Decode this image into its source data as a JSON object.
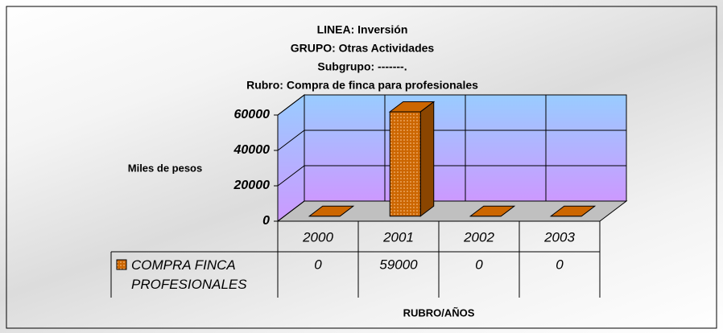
{
  "chart_data": {
    "type": "bar3d",
    "title_lines": [
      "LINEA: Inversión",
      "GRUPO: Otras Actividades",
      "Subgrupo: -------.",
      "Rubro: Compra de finca para profesionales"
    ],
    "y_label": "Miles de pesos",
    "x_label": "RUBRO/AÑOS",
    "categories": [
      "2000",
      "2001",
      "2002",
      "2003"
    ],
    "series": [
      {
        "name": "COMPRA FINCA PROFESIONALES",
        "color": "#cc6600",
        "values": [
          0,
          59000,
          0,
          0
        ]
      }
    ],
    "ylim": [
      0,
      60000
    ],
    "yticks": [
      0,
      20000,
      40000,
      60000
    ],
    "grid": true,
    "data_table": true
  }
}
